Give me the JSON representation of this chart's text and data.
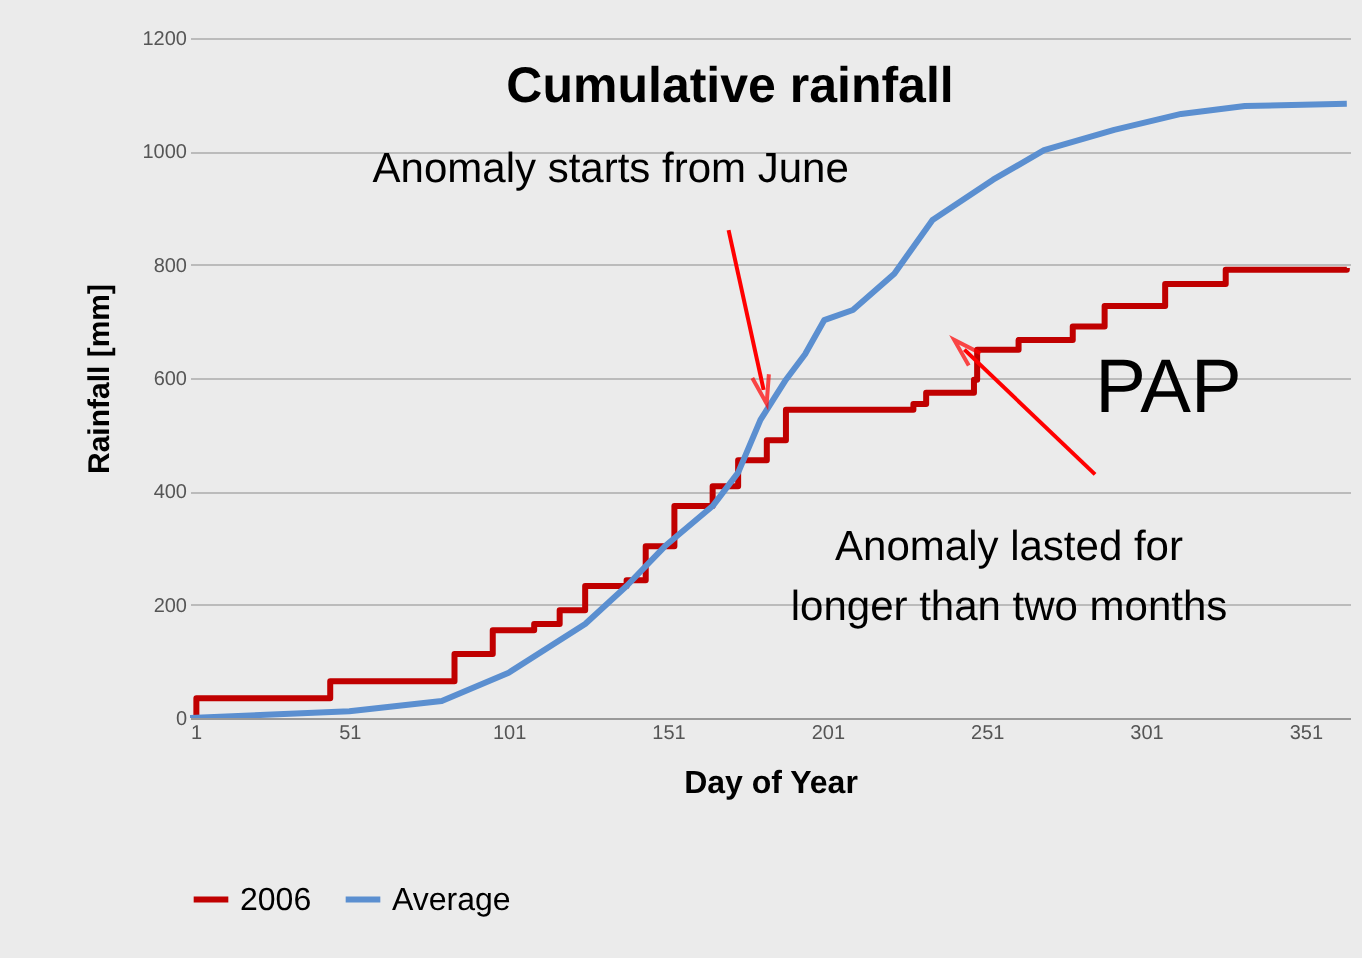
{
  "chart_data": {
    "type": "line",
    "title": "Cumulative rainfall",
    "xlabel": "Day of Year",
    "ylabel": "Rainfall [mm]",
    "xlim": [
      1,
      365
    ],
    "xticks": [
      1,
      51,
      101,
      151,
      201,
      251,
      301,
      351
    ],
    "ylim": [
      0,
      1200
    ],
    "yticks": [
      0,
      200,
      400,
      600,
      800,
      1000,
      1200
    ],
    "grid": "y",
    "legend": "bottom",
    "annotations": [
      {
        "text": "Anomaly starts from June",
        "x": 181,
        "y": 579
      },
      {
        "text": "Anomaly lasted for longer than two months",
        "x": 244,
        "y": 650
      },
      "PAP"
    ],
    "series": [
      {
        "name": "2006",
        "type": "step",
        "color": "#c00000",
        "x": [
          1,
          3,
          45,
          84,
          96,
          109,
          117,
          125,
          138,
          144,
          153,
          165,
          173,
          182,
          188,
          228,
          232,
          247,
          248,
          261,
          278,
          288,
          307,
          326,
          364
        ],
        "values": [
          0,
          35,
          65,
          113,
          155,
          166,
          190,
          233,
          243,
          303,
          374,
          409,
          455,
          490,
          544,
          554,
          574,
          597,
          650,
          667,
          691,
          727,
          766,
          791,
          794
        ]
      },
      {
        "name": "Average",
        "color": "#5b8fd0",
        "x": [
          1,
          51,
          80,
          101,
          125,
          138,
          150,
          165,
          173,
          180,
          188,
          194,
          200,
          209,
          222,
          234,
          253,
          269,
          291,
          312,
          332,
          364
        ],
        "values": [
          0,
          12,
          30,
          80,
          166,
          233,
          303,
          374,
          433,
          526,
          597,
          642,
          702,
          720,
          784,
          879,
          950,
          1002,
          1038,
          1066,
          1080,
          1084
        ]
      }
    ]
  }
}
